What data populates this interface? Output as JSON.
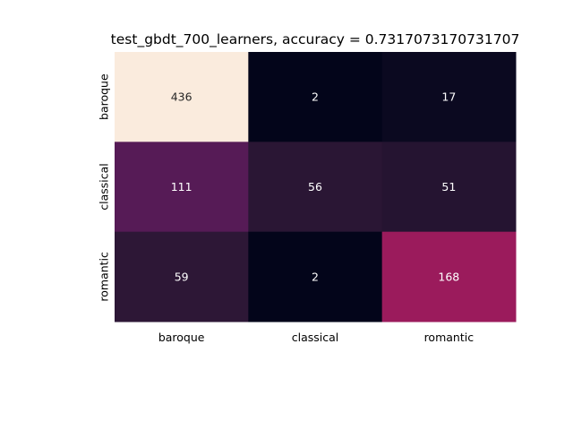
{
  "chart_data": {
    "type": "heatmap",
    "title": "test_gbdt_700_learners, accuracy = 0.7317073170731707",
    "xlabel": "",
    "ylabel": "",
    "x_categories": [
      "baroque",
      "classical",
      "romantic"
    ],
    "y_categories": [
      "baroque",
      "classical",
      "romantic"
    ],
    "values": [
      [
        436,
        2,
        17
      ],
      [
        111,
        56,
        51
      ],
      [
        59,
        2,
        168
      ]
    ],
    "value_range": [
      2,
      436
    ],
    "colormap": "rocket",
    "colorbar": false,
    "grid": false,
    "annotations": true
  }
}
